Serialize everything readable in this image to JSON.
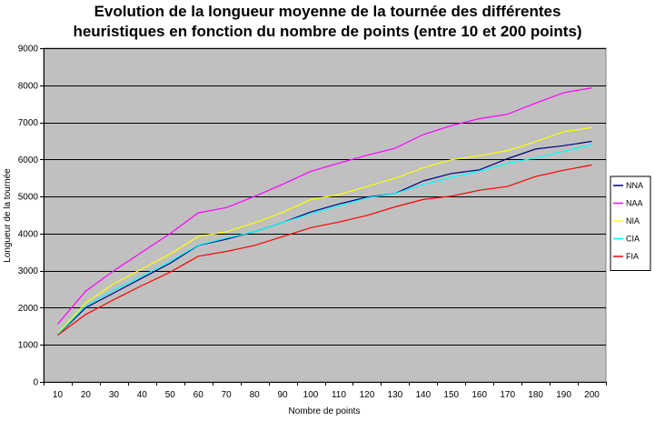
{
  "chart_data": {
    "type": "line",
    "title": "Evolution de la longueur moyenne de la tournée des différentes heuristiques en fonction du nombre de points (entre 10 et 200 points)",
    "title_lines": [
      "Evolution de la longueur moyenne de la tournée des différentes",
      "heuristiques en fonction du nombre de points (entre 10 et 200 points)"
    ],
    "xlabel": "Nombre de points",
    "ylabel": "Longueur de la tournée",
    "x": [
      10,
      20,
      30,
      40,
      50,
      60,
      70,
      80,
      90,
      100,
      110,
      120,
      130,
      140,
      150,
      160,
      170,
      180,
      190,
      200
    ],
    "ylim": [
      0,
      9000
    ],
    "yticks": [
      0,
      1000,
      2000,
      3000,
      4000,
      5000,
      6000,
      7000,
      8000,
      9000
    ],
    "grid": "horizontal",
    "plot_background": "#c0c0c0",
    "legend_position": "right",
    "series": [
      {
        "name": "NNA",
        "color": "#000080",
        "values": [
          1270,
          2000,
          2400,
          2800,
          3200,
          3680,
          3850,
          4050,
          4300,
          4580,
          4800,
          4980,
          5080,
          5420,
          5620,
          5720,
          6020,
          6280,
          6370,
          6490
        ]
      },
      {
        "name": "NAA",
        "color": "#ff00ff",
        "values": [
          1560,
          2450,
          3000,
          3500,
          4000,
          4560,
          4700,
          5000,
          5330,
          5680,
          5900,
          6110,
          6300,
          6670,
          6910,
          7100,
          7220,
          7520,
          7800,
          7930
        ]
      },
      {
        "name": "NIA",
        "color": "#ffff00",
        "values": [
          1300,
          2130,
          2650,
          3050,
          3450,
          3920,
          4050,
          4290,
          4570,
          4920,
          5050,
          5270,
          5490,
          5770,
          5990,
          6100,
          6240,
          6480,
          6750,
          6860
        ]
      },
      {
        "name": "CIA",
        "color": "#00ffff",
        "values": [
          1280,
          2050,
          2480,
          2850,
          3250,
          3690,
          3880,
          4050,
          4300,
          4530,
          4750,
          4960,
          5080,
          5320,
          5520,
          5680,
          5900,
          6040,
          6220,
          6400
        ]
      },
      {
        "name": "FIA",
        "color": "#ff0000",
        "values": [
          1260,
          1820,
          2220,
          2600,
          2960,
          3390,
          3520,
          3680,
          3920,
          4160,
          4310,
          4490,
          4720,
          4920,
          5010,
          5170,
          5270,
          5540,
          5710,
          5850
        ]
      }
    ]
  }
}
